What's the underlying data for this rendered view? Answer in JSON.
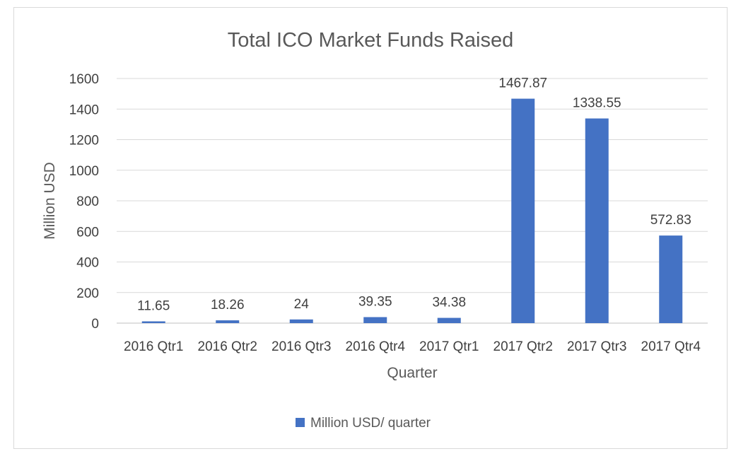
{
  "chart_data": {
    "type": "bar",
    "title": "Total ICO Market Funds Raised",
    "xlabel": "Quarter",
    "ylabel": "Million USD",
    "ylim": [
      0,
      1600
    ],
    "yticks": [
      "0",
      "200",
      "400",
      "600",
      "800",
      "1000",
      "1200",
      "1400",
      "1600"
    ],
    "categories": [
      "2016 Qtr1",
      "2016 Qtr2",
      "2016 Qtr3",
      "2016 Qtr4",
      "2017 Qtr1",
      "2017 Qtr2",
      "2017 Qtr3",
      "2017 Qtr4"
    ],
    "series": [
      {
        "name": "Million USD/ quarter",
        "values": [
          11.65,
          18.26,
          24,
          39.35,
          34.38,
          1467.87,
          1338.55,
          572.83
        ],
        "labels": [
          "11.65",
          "18.26",
          "24",
          "39.35",
          "34.38",
          "1467.87",
          "1338.55",
          "572.83"
        ],
        "color": "#4472c4"
      }
    ],
    "grid": true,
    "legend_position": "bottom"
  }
}
